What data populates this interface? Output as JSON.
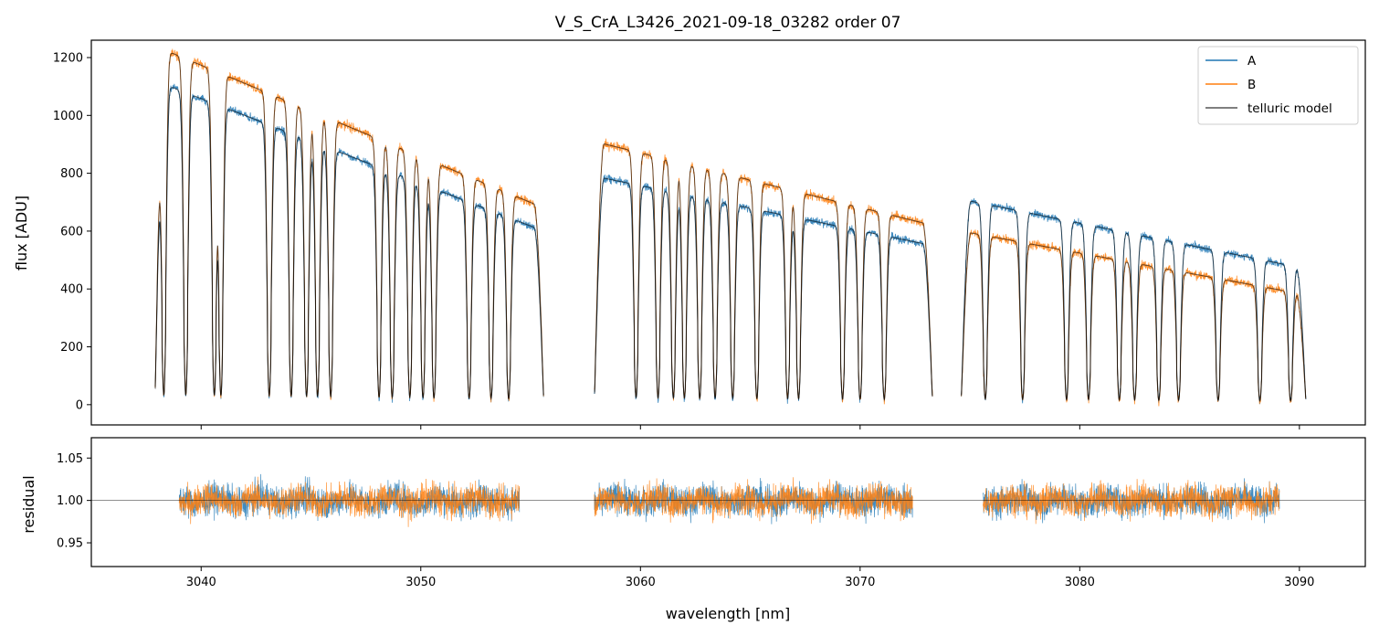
{
  "figure": {
    "title": "V_S_CrA_L3426_2021-09-18_03282  order 07"
  },
  "colors": {
    "A": "#1f77b4",
    "B": "#ff7f0e",
    "model": "#000000",
    "frame": "#000000"
  },
  "chart_data": [
    {
      "type": "line",
      "panel": "flux",
      "title": "V_S_CrA_L3426_2021-09-18_03282  order 07",
      "xlabel": "",
      "ylabel": "flux [ADU]",
      "xlim": [
        3035,
        3093
      ],
      "ylim": [
        -70,
        1260
      ],
      "yticks": [
        0,
        200,
        400,
        600,
        800,
        1000,
        1200
      ],
      "xticks": [
        3040,
        3050,
        3060,
        3070,
        3080,
        3090
      ],
      "legend_position": "top-right",
      "legend": [
        "A",
        "B",
        "telluric model"
      ],
      "segments": [
        {
          "start": 3037.9,
          "end": 3055.6,
          "A_level": [
            1120,
            600
          ],
          "B_level": [
            1240,
            680
          ]
        },
        {
          "start": 3057.9,
          "end": 3073.3,
          "A_level": [
            790,
            550
          ],
          "B_level": [
            910,
            620
          ]
        },
        {
          "start": 3074.6,
          "end": 3090.3,
          "A_level": [
            710,
            470
          ],
          "B_level": [
            600,
            380
          ]
        }
      ],
      "absorption_lines_nm": [
        3038.3,
        3039.3,
        3040.6,
        3040.9,
        3043.1,
        3044.1,
        3044.8,
        3045.3,
        3045.9,
        3048.1,
        3048.7,
        3049.5,
        3050.1,
        3050.6,
        3052.2,
        3053.2,
        3054.0,
        3059.8,
        3060.8,
        3061.5,
        3062.0,
        3062.7,
        3063.4,
        3064.2,
        3065.3,
        3066.7,
        3067.2,
        3069.2,
        3070.0,
        3071.1,
        3075.7,
        3077.4,
        3079.4,
        3080.4,
        3081.8,
        3082.5,
        3083.6,
        3084.5,
        3086.3,
        3088.2,
        3089.6
      ],
      "series": [
        {
          "name": "A",
          "color": "#1f77b4",
          "description": "observed spectrum A"
        },
        {
          "name": "B",
          "color": "#ff7f0e",
          "description": "observed spectrum B"
        },
        {
          "name": "telluric model",
          "color": "#000000",
          "description": "model fit"
        }
      ]
    },
    {
      "type": "line",
      "panel": "residual",
      "xlabel": "wavelength [nm]",
      "ylabel": "residual",
      "xlim": [
        3035,
        3093
      ],
      "ylim": [
        0.922,
        1.074
      ],
      "yticks": [
        0.95,
        1.0,
        1.05
      ],
      "ytick_labels": [
        "0.95",
        "1.00",
        "1.05"
      ],
      "xticks": [
        3040,
        3050,
        3060,
        3070,
        3080,
        3090
      ],
      "reference_line": 1.0,
      "segments": [
        {
          "start": 3039.0,
          "end": 3054.5
        },
        {
          "start": 3057.9,
          "end": 3072.4
        },
        {
          "start": 3075.6,
          "end": 3089.1
        }
      ],
      "noise_sigma": 0.018
    }
  ]
}
